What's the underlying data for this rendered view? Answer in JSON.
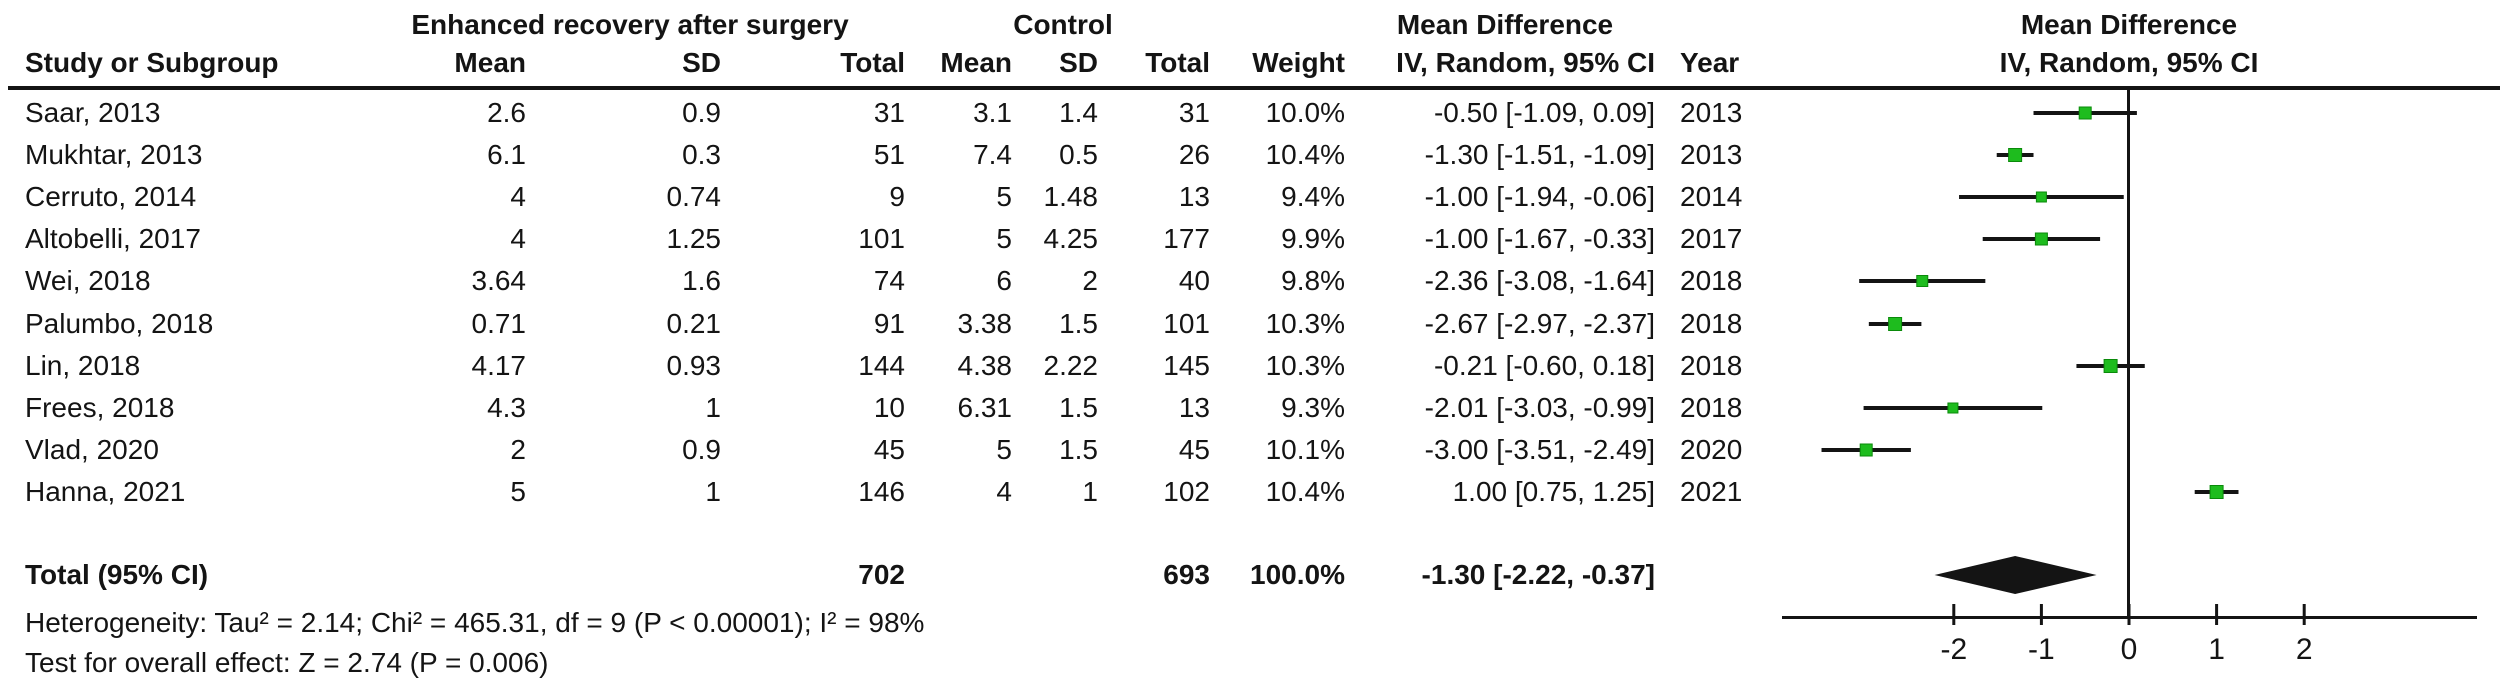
{
  "header": {
    "group_eras": "Enhanced recovery after surgery",
    "group_control": "Control",
    "mean_difference_text_col": "Mean Difference",
    "mean_difference_plot_col": "Mean Difference",
    "col_study": "Study or Subgroup",
    "col_mean_eras": "Mean",
    "col_sd_eras": "SD",
    "col_total_eras": "Total",
    "col_mean_control": "Mean",
    "col_sd_control": "SD",
    "col_total_control": "Total",
    "col_weight": "Weight",
    "col_ci": "IV, Random, 95% CI",
    "col_year": "Year",
    "col_ci_plot": "IV, Random, 95% CI"
  },
  "chart_data": {
    "type": "forest",
    "effect_measure": "Mean Difference",
    "model": "IV, Random, 95% CI",
    "marker_color": "#1ebc1e",
    "line_color": "#141414",
    "axis_ticks": [
      -2,
      -1,
      0,
      1,
      2
    ],
    "xlim": [
      -3.95,
      3.95
    ],
    "studies": [
      {
        "label": "Saar, 2013",
        "mean1": "2.6",
        "sd1": "0.9",
        "total1": "31",
        "mean2": "3.1",
        "sd2": "1.4",
        "total2": "31",
        "weight": "10.0%",
        "weight_num": 10.0,
        "ci_text": "-0.50 [-1.09, 0.09]",
        "year": "2013",
        "md": -0.5,
        "lo": -1.09,
        "hi": 0.09
      },
      {
        "label": "Mukhtar, 2013",
        "mean1": "6.1",
        "sd1": "0.3",
        "total1": "51",
        "mean2": "7.4",
        "sd2": "0.5",
        "total2": "26",
        "weight": "10.4%",
        "weight_num": 10.4,
        "ci_text": "-1.30 [-1.51, -1.09]",
        "year": "2013",
        "md": -1.3,
        "lo": -1.51,
        "hi": -1.09
      },
      {
        "label": "Cerruto, 2014",
        "mean1": "4",
        "sd1": "0.74",
        "total1": "9",
        "mean2": "5",
        "sd2": "1.48",
        "total2": "13",
        "weight": "9.4%",
        "weight_num": 9.4,
        "ci_text": "-1.00 [-1.94, -0.06]",
        "year": "2014",
        "md": -1.0,
        "lo": -1.94,
        "hi": -0.06
      },
      {
        "label": "Altobelli, 2017",
        "mean1": "4",
        "sd1": "1.25",
        "total1": "101",
        "mean2": "5",
        "sd2": "4.25",
        "total2": "177",
        "weight": "9.9%",
        "weight_num": 9.9,
        "ci_text": "-1.00 [-1.67, -0.33]",
        "year": "2017",
        "md": -1.0,
        "lo": -1.67,
        "hi": -0.33
      },
      {
        "label": "Wei, 2018",
        "mean1": "3.64",
        "sd1": "1.6",
        "total1": "74",
        "mean2": "6",
        "sd2": "2",
        "total2": "40",
        "weight": "9.8%",
        "weight_num": 9.8,
        "ci_text": "-2.36 [-3.08, -1.64]",
        "year": "2018",
        "md": -2.36,
        "lo": -3.08,
        "hi": -1.64
      },
      {
        "label": "Palumbo, 2018",
        "mean1": "0.71",
        "sd1": "0.21",
        "total1": "91",
        "mean2": "3.38",
        "sd2": "1.5",
        "total2": "101",
        "weight": "10.3%",
        "weight_num": 10.3,
        "ci_text": "-2.67 [-2.97, -2.37]",
        "year": "2018",
        "md": -2.67,
        "lo": -2.97,
        "hi": -2.37
      },
      {
        "label": "Lin, 2018",
        "mean1": "4.17",
        "sd1": "0.93",
        "total1": "144",
        "mean2": "4.38",
        "sd2": "2.22",
        "total2": "145",
        "weight": "10.3%",
        "weight_num": 10.3,
        "ci_text": "-0.21 [-0.60, 0.18]",
        "year": "2018",
        "md": -0.21,
        "lo": -0.6,
        "hi": 0.18
      },
      {
        "label": "Frees, 2018",
        "mean1": "4.3",
        "sd1": "1",
        "total1": "10",
        "mean2": "6.31",
        "sd2": "1.5",
        "total2": "13",
        "weight": "9.3%",
        "weight_num": 9.3,
        "ci_text": "-2.01 [-3.03, -0.99]",
        "year": "2018",
        "md": -2.01,
        "lo": -3.03,
        "hi": -0.99
      },
      {
        "label": "Vlad, 2020",
        "mean1": "2",
        "sd1": "0.9",
        "total1": "45",
        "mean2": "5",
        "sd2": "1.5",
        "total2": "45",
        "weight": "10.1%",
        "weight_num": 10.1,
        "ci_text": "-3.00 [-3.51, -2.49]",
        "year": "2020",
        "md": -3.0,
        "lo": -3.51,
        "hi": -2.49
      },
      {
        "label": "Hanna, 2021",
        "mean1": "5",
        "sd1": "1",
        "total1": "146",
        "mean2": "4",
        "sd2": "1",
        "total2": "102",
        "weight": "10.4%",
        "weight_num": 10.4,
        "ci_text": "1.00 [0.75, 1.25]",
        "year": "2021",
        "md": 1.0,
        "lo": 0.75,
        "hi": 1.25
      }
    ],
    "total": {
      "label": "Total (95% CI)",
      "total1": "702",
      "total2": "693",
      "weight": "100.0%",
      "ci_text": "-1.30 [-2.22, -0.37]",
      "md": -1.3,
      "lo": -2.22,
      "hi": -0.37
    },
    "footer_heterogeneity": "Heterogeneity: Tau² = 2.14; Chi² = 465.31, df = 9 (P < 0.00001); I² = 98%",
    "footer_overall_effect": "Test for overall effect: Z = 2.74 (P = 0.006)"
  }
}
